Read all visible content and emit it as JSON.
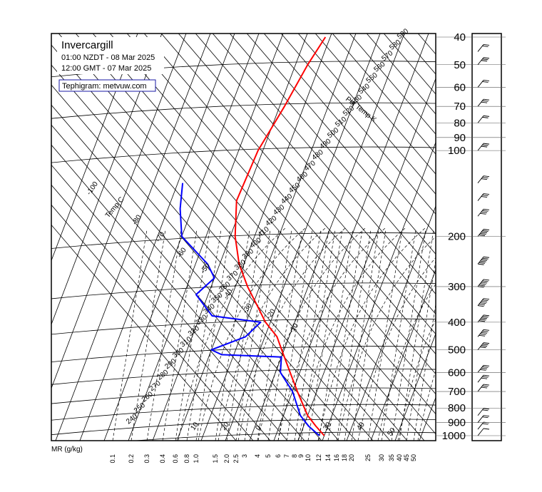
{
  "chart_data": {
    "type": "line",
    "station": "Invercargill",
    "time_local": "01:00 NZDT - 08 Mar 2025",
    "time_utc": "12:00 GMT - 07 Mar 2025",
    "credit": "Tephigram: metvuw.com",
    "mr_axis_label": "MR (g/kg)",
    "temp_axis_label": "Temp C",
    "theta_axis_label": "Pot Temp K",
    "pressure_levels": [
      "40",
      "50",
      "60",
      "70",
      "80",
      "90",
      "100",
      "200",
      "300",
      "400",
      "500",
      "600",
      "700",
      "800",
      "900",
      "1000"
    ],
    "mixing_ratio_labels": [
      "0.1",
      "0.2",
      "0.3",
      "0.4",
      "0.6",
      "0.8",
      "1.0",
      "1.5",
      "2.0",
      "2.5",
      "3",
      "4",
      "5",
      "6",
      "7",
      "8",
      "9",
      "10",
      "12",
      "14",
      "16",
      "18",
      "20",
      "25",
      "30",
      "35",
      "40",
      "45",
      "50"
    ],
    "theta_labels": [
      "240",
      "250",
      "260",
      "270",
      "280",
      "290",
      "300",
      "310",
      "320",
      "330",
      "340",
      "350",
      "360",
      "370",
      "380",
      "390",
      "400",
      "410",
      "420",
      "430",
      "440",
      "450",
      "460",
      "470",
      "480",
      "490",
      "500",
      "510",
      "520",
      "530",
      "540",
      "550",
      "560",
      "570",
      "580",
      "590"
    ],
    "isotherm_labels": [
      "-100",
      "-80",
      "-70",
      "-60",
      "-50",
      "-40",
      "-30",
      "-20",
      "-10",
      "0",
      "10",
      "20",
      "30",
      "40",
      "50"
    ],
    "series": [
      {
        "name": "Temperature",
        "color": "#ff0000",
        "points": [
          {
            "p": 1000,
            "t": 10
          },
          {
            "p": 925,
            "t": 5
          },
          {
            "p": 850,
            "t": 0
          },
          {
            "p": 700,
            "t": -8
          },
          {
            "p": 600,
            "t": -14
          },
          {
            "p": 500,
            "t": -21
          },
          {
            "p": 450,
            "t": -25
          },
          {
            "p": 400,
            "t": -32
          },
          {
            "p": 350,
            "t": -38
          },
          {
            "p": 300,
            "t": -45
          },
          {
            "p": 250,
            "t": -52
          },
          {
            "p": 200,
            "t": -58
          },
          {
            "p": 150,
            "t": -63
          },
          {
            "p": 100,
            "t": -62
          },
          {
            "p": 70,
            "t": -58
          },
          {
            "p": 50,
            "t": -55
          },
          {
            "p": 40,
            "t": -52
          }
        ]
      },
      {
        "name": "Dewpoint",
        "color": "#0000ff",
        "points": [
          {
            "p": 1000,
            "t": 8
          },
          {
            "p": 925,
            "t": 2
          },
          {
            "p": 850,
            "t": -3
          },
          {
            "p": 700,
            "t": -10
          },
          {
            "p": 600,
            "t": -18
          },
          {
            "p": 530,
            "t": -20
          },
          {
            "p": 520,
            "t": -45
          },
          {
            "p": 500,
            "t": -50
          },
          {
            "p": 450,
            "t": -38
          },
          {
            "p": 400,
            "t": -34
          },
          {
            "p": 380,
            "t": -55
          },
          {
            "p": 320,
            "t": -65
          },
          {
            "p": 280,
            "t": -60
          },
          {
            "p": 250,
            "t": -65
          },
          {
            "p": 200,
            "t": -80
          },
          {
            "p": 160,
            "t": -85
          },
          {
            "p": 130,
            "t": -88
          }
        ]
      }
    ],
    "wind_levels": [
      {
        "p": 1000,
        "speed_kt": 10
      },
      {
        "p": 950,
        "speed_kt": 15
      },
      {
        "p": 900,
        "speed_kt": 20
      },
      {
        "p": 850,
        "speed_kt": 20
      },
      {
        "p": 700,
        "speed_kt": 25
      },
      {
        "p": 650,
        "speed_kt": 30
      },
      {
        "p": 600,
        "speed_kt": 35
      },
      {
        "p": 500,
        "speed_kt": 40
      },
      {
        "p": 450,
        "speed_kt": 45
      },
      {
        "p": 400,
        "speed_kt": 50
      },
      {
        "p": 350,
        "speed_kt": 55
      },
      {
        "p": 300,
        "speed_kt": 60
      },
      {
        "p": 250,
        "speed_kt": 55
      },
      {
        "p": 200,
        "speed_kt": 45
      },
      {
        "p": 170,
        "speed_kt": 35
      },
      {
        "p": 150,
        "speed_kt": 30
      },
      {
        "p": 130,
        "speed_kt": 25
      },
      {
        "p": 100,
        "speed_kt": 25
      },
      {
        "p": 80,
        "speed_kt": 20
      },
      {
        "p": 70,
        "speed_kt": 25
      },
      {
        "p": 60,
        "speed_kt": 20
      },
      {
        "p": 50,
        "speed_kt": 25
      },
      {
        "p": 45,
        "speed_kt": 20
      }
    ]
  }
}
